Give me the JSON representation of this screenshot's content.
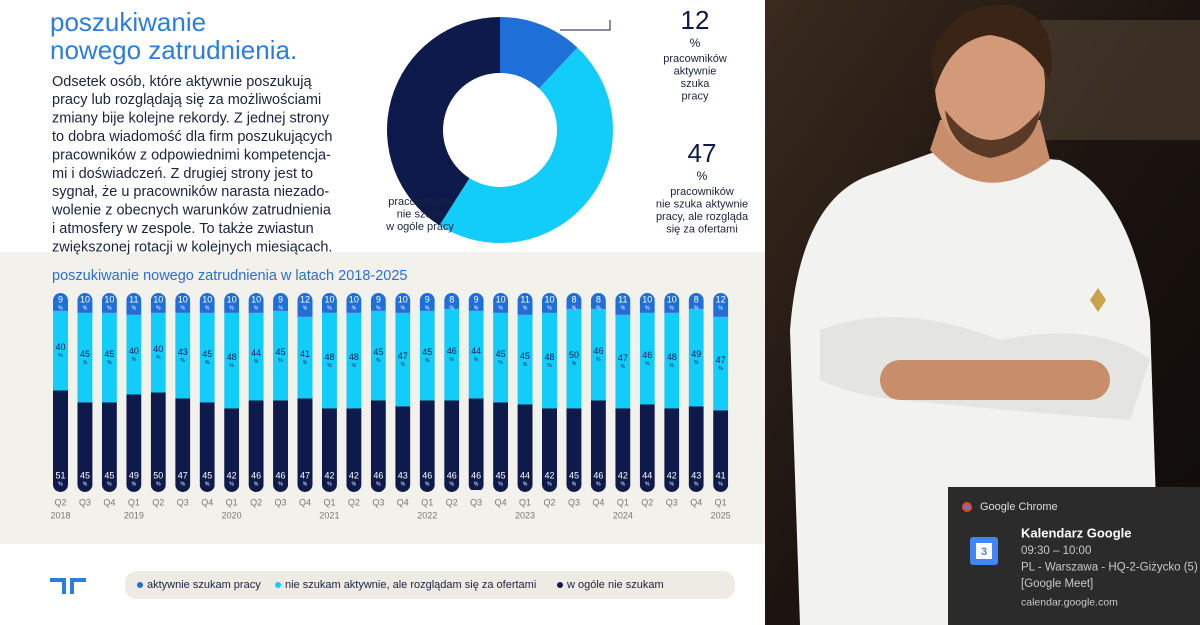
{
  "header": {
    "title_lines": [
      "poszukiwanie",
      "nowego zatrudnienia."
    ]
  },
  "intro": {
    "lines": [
      "Odsetek osób, które aktywnie poszukują",
      "pracy lub rozglądają się za możliwościami",
      "zmiany bije kolejne rekordy. Z jednej strony",
      "to dobra wiadomość dla firm poszukujących",
      "pracowników z odpowiednimi kompetencja-",
      "mi i doświadczeń. Z drugiej strony jest to",
      "sygnał, że u pracowników narasta niezado-",
      "wolenie z obecnych warunków zatrudnienia",
      "i atmosfery w zespole. To także zwiastun",
      "zwiększonej rotacji w kolejnych miesiącach."
    ]
  },
  "chart_data": [
    {
      "type": "donut",
      "unit": "%",
      "categories": [
        [
          "pracowników",
          "aktywnie",
          "szuka",
          "pracy"
        ],
        [
          "pracowników",
          "nie szuka aktywnie",
          "pracy, ale rozgląda",
          "się za ofertami"
        ],
        [
          "pracowników",
          "nie szuka",
          "w ogóle pracy"
        ]
      ],
      "values": [
        12,
        47,
        41
      ],
      "colors": [
        "#1f6fd8",
        "#12cdfa",
        "#0e1a4c"
      ]
    },
    {
      "type": "stacked_bar",
      "title": "poszukiwanie nowego zatrudnienia w latach 2018-2025",
      "unit": "%",
      "categories": [
        "Q2",
        "Q3",
        "Q4",
        "Q1",
        "Q2",
        "Q3",
        "Q4",
        "Q1",
        "Q2",
        "Q3",
        "Q4",
        "Q1",
        "Q2",
        "Q3",
        "Q4",
        "Q1",
        "Q2",
        "Q3",
        "Q4",
        "Q1",
        "Q2",
        "Q3",
        "Q4",
        "Q1",
        "Q2",
        "Q3",
        "Q4",
        "Q1"
      ],
      "years": [
        "2018",
        null,
        null,
        "2019",
        null,
        null,
        null,
        "2020",
        null,
        null,
        null,
        "2021",
        null,
        null,
        null,
        "2022",
        null,
        null,
        null,
        "2023",
        null,
        null,
        null,
        "2024",
        null,
        null,
        null,
        "2025"
      ],
      "ylim": [
        0,
        100
      ],
      "series": [
        {
          "name": "aktywnie szukam pracy",
          "color": "#1f6fd8",
          "values": [
            9,
            10,
            10,
            11,
            10,
            10,
            10,
            10,
            10,
            9,
            12,
            10,
            10,
            9,
            10,
            9,
            8,
            9,
            10,
            11,
            10,
            8,
            8,
            11,
            10,
            10,
            8,
            12
          ]
        },
        {
          "name": "nie szukam aktywnie, ale rozglądam się za ofertami",
          "color": "#12cdfa",
          "values": [
            40,
            45,
            45,
            40,
            40,
            43,
            45,
            48,
            44,
            45,
            41,
            48,
            48,
            45,
            47,
            45,
            46,
            44,
            45,
            45,
            48,
            50,
            46,
            47,
            46,
            48,
            49,
            47
          ]
        },
        {
          "name": "w ogóle nie szukam",
          "color": "#0e1a4c",
          "values": [
            51,
            45,
            45,
            49,
            50,
            47,
            45,
            42,
            46,
            46,
            47,
            42,
            42,
            46,
            43,
            46,
            46,
            46,
            45,
            44,
            42,
            45,
            46,
            42,
            44,
            42,
            43,
            41
          ]
        }
      ]
    }
  ],
  "notification": {
    "app": "Google Chrome",
    "title": "Kalendarz Google",
    "icon_text": "3",
    "lines": [
      "09:30 – 10:00",
      "PL - Warszawa - HQ-2-Giżycko (5)",
      "[Google Meet]",
      "calendar.google.com"
    ]
  }
}
